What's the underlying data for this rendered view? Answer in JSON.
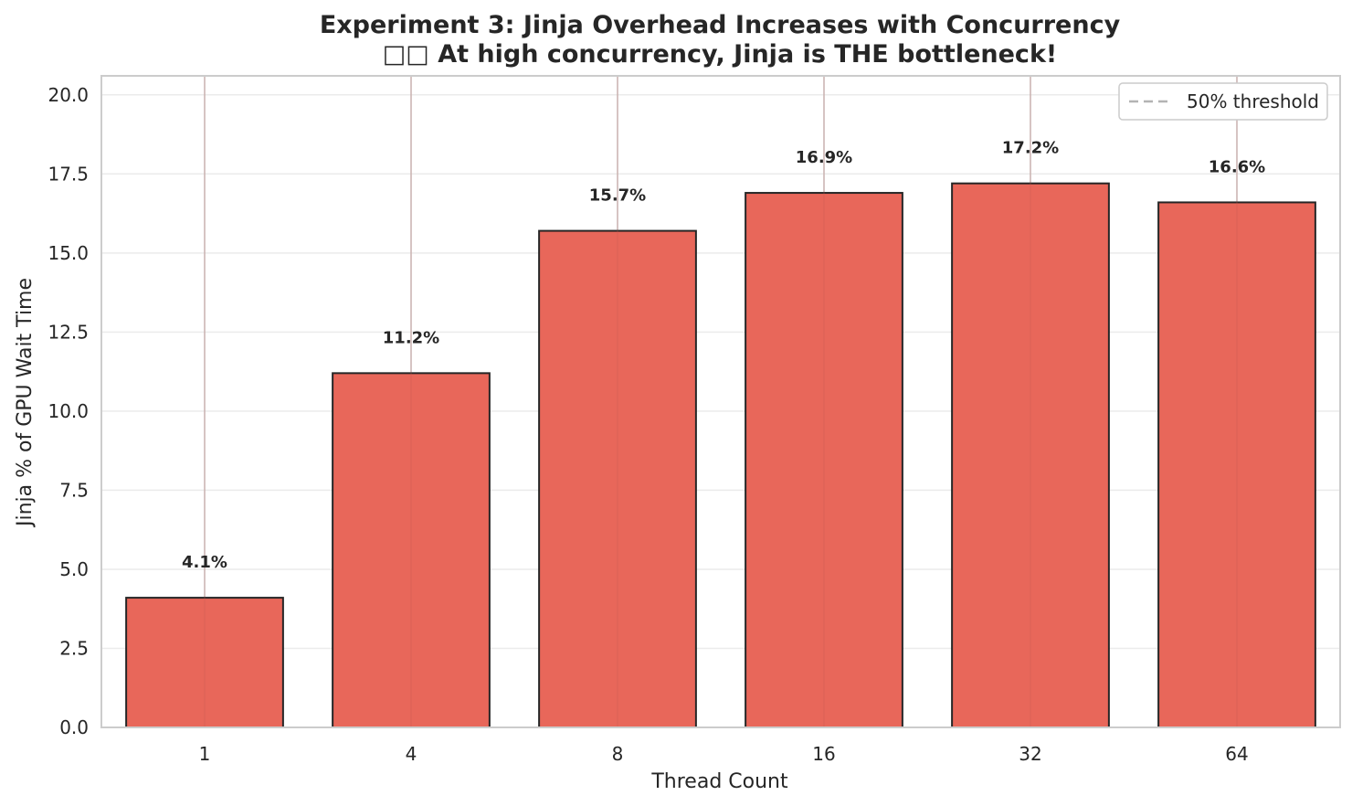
{
  "chart_data": {
    "type": "bar",
    "title": "Experiment 3: Jinja Overhead Increases with Concurrency",
    "subtitle": "□□ At high concurrency, Jinja is THE bottleneck!",
    "xlabel": "Thread Count",
    "ylabel": "Jinja % of GPU Wait Time",
    "categories": [
      "1",
      "4",
      "8",
      "16",
      "32",
      "64"
    ],
    "values": [
      4.1,
      11.2,
      15.7,
      16.9,
      17.2,
      16.6
    ],
    "data_labels": [
      "4.1%",
      "11.2%",
      "15.7%",
      "16.9%",
      "17.2%",
      "16.6%"
    ],
    "ylim": [
      0,
      20.6
    ],
    "yticks": [
      0,
      2.5,
      5,
      7.5,
      10,
      12.5,
      15,
      17.5,
      20
    ],
    "ytick_labels": [
      "0.0",
      "2.5",
      "5.0",
      "7.5",
      "10.0",
      "12.5",
      "15.0",
      "17.5",
      "20.0"
    ],
    "grid": true,
    "legend": {
      "position": "top-right",
      "entries": [
        {
          "label": "50% threshold",
          "style": "dashed",
          "color": "#b3b3b3"
        }
      ]
    },
    "colors": {
      "bar_fill": "#e8675a",
      "bar_edge": "#262626",
      "grid": "#ebebeb",
      "vgrid": "#cccccc",
      "frame": "#cccccc"
    }
  }
}
